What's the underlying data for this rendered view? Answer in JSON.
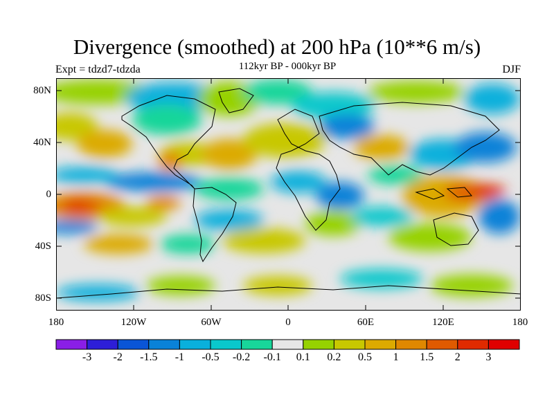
{
  "title": "Divergence (smoothed) at 200 hPa (10**6 m/s)",
  "subtitle": "112kyr BP - 000kyr BP",
  "left_label": "Expt = tdzd7-tdzda",
  "right_label": "DJF",
  "lat_labels": [
    "80N",
    "40N",
    "0",
    "40S",
    "80S"
  ],
  "lon_labels": [
    "180",
    "120W",
    "60W",
    "0",
    "60E",
    "120E",
    "180"
  ],
  "colorbar": {
    "labels": [
      "-3",
      "-2",
      "-1.5",
      "-1",
      "-0.5",
      "-0.2",
      "-0.1",
      "0.1",
      "0.2",
      "0.5",
      "1",
      "1.5",
      "2",
      "3"
    ],
    "colors": [
      "#8a1ee6",
      "#2d1ed8",
      "#0a55d6",
      "#0a82d8",
      "#0ab0dc",
      "#0ac8cc",
      "#18d69a",
      "#e6e6e6",
      "#96d200",
      "#c8c800",
      "#dcaa00",
      "#e08800",
      "#e05a00",
      "#e02a00",
      "#e00000"
    ]
  },
  "map_fields": [
    {
      "name": "central-pacific-south-positive",
      "level": "3"
    },
    {
      "name": "west-pacific-positive",
      "level": "2"
    },
    {
      "name": "tropical-belt-negative",
      "level": "-1"
    }
  ]
}
